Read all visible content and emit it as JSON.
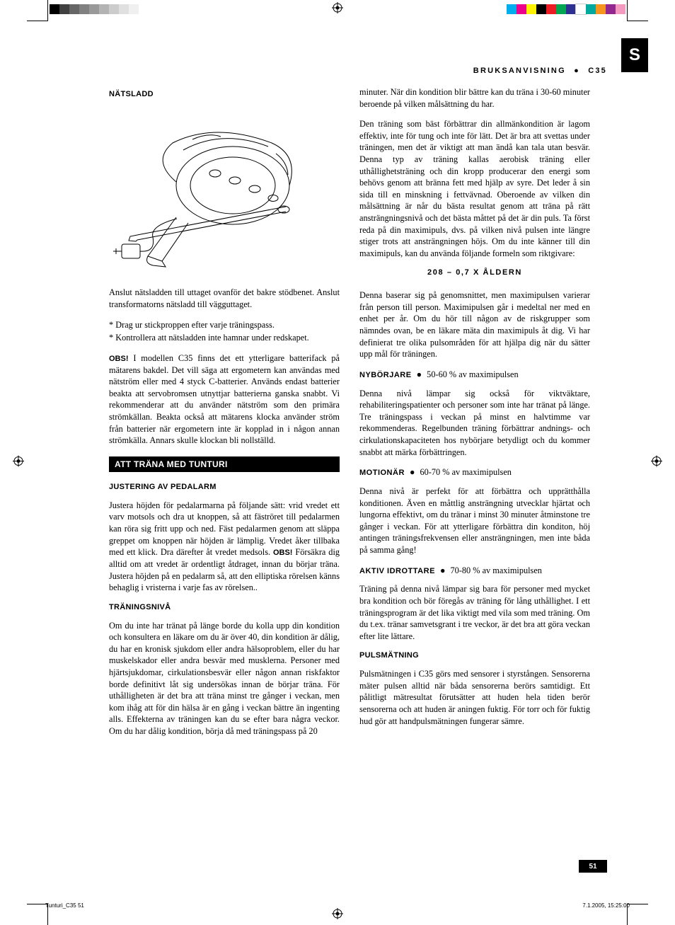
{
  "regmarks": {
    "gray_bar": [
      "#000000",
      "#404040",
      "#666666",
      "#808080",
      "#999999",
      "#b3b3b3",
      "#cccccc",
      "#e0e0e0",
      "#f0f0f0"
    ],
    "color_bar": [
      "#00aeef",
      "#ec008c",
      "#fff200",
      "#000000",
      "#ed1c24",
      "#00a651",
      "#2e3192",
      "#ffffff",
      "#00a99d",
      "#f7941d",
      "#92278f",
      "#f49ac1"
    ]
  },
  "tab": {
    "letter": "S"
  },
  "header": {
    "left": "BRUKSANVISNING",
    "right": "C35"
  },
  "page_number": "51",
  "footer": {
    "left": "Tunturi_C35   51",
    "right": "7.1.2005, 15:25:00"
  },
  "left_col": {
    "h_natsladd": "NÄTSLADD",
    "p_natsladd": "Anslut nätsladden till uttaget ovanför det bakre stödbenet. Anslut transformatorns nätsladd till vägguttaget.",
    "bul1": "* Drag ur stickproppen efter varje träningspass.",
    "bul2": "* Kontrollera att nätsladden inte hamnar under redskapet.",
    "obs_label": "OBS!",
    "p_obs": " I modellen C35 finns det ett ytterligare batterifack på mätarens bakdel. Det vill säga att ergometern kan användas med nätström eller med 4 styck C-batterier. Används endast batterier beakta att servobromsen utnyttjar batterierna ganska snabbt. Vi rekommenderar att du använder nätström som den primära strömkällan. Beakta också att mätarens klocka använder ström från batterier när ergometern inte är kopplad in i någon annan strömkälla. Annars skulle klockan bli nollställd.",
    "section_bar": "ATT TRÄNA MED TUNTURI",
    "h_just": "JUSTERING AV PEDALARM",
    "p_just_a": "Justera höjden för pedalarmarna på följande sätt: vrid vredet ett varv motsols och dra ut knoppen, så att fäströret till pedalarmen kan röra sig fritt upp och ned. Fäst pedalarmen genom att släppa greppet om knoppen när höjden är lämplig. Vredet åker tillbaka med ett klick. Dra därefter åt vredet medsols. ",
    "obs2_label": "OBS!",
    "p_just_b": " Försäkra dig alltid om att vredet är ordentligt åtdraget, innan du börjar träna. Justera höjden på en pedalarm så, att den elliptiska rörelsen känns behaglig i vristerna i varje fas av rörelsen..",
    "h_tniv": "TRÄNINGSNIVÅ",
    "p_tniv": "Om du inte har tränat på länge borde du kolla upp din kondition och konsultera en läkare om du är över 40, din kondition är dålig, du har en kronisk sjukdom eller andra hälsoproblem, eller du har muskelskador eller andra besvär med musklerna. Personer med hjärtsjukdomar, cirkulationsbesvär eller någon annan riskfaktor borde definitivt låt sig undersökas innan de börjar träna. För uthålligheten är det bra att träna minst tre gånger i veckan, men kom ihåg att för din hälsa är en gång i veckan bättre än ingenting alls. Effekterna av träningen kan du se efter bara några veckor. Om du har dålig kondition, börja då med träningspass på 20"
  },
  "right_col": {
    "p_cont": "minuter. När din kondition blir bättre kan du träna i 30-60 minuter beroende på vilken målsättning du har.",
    "p_main": "Den träning som bäst förbättrar din allmänkondition är lagom effektiv, inte för tung och inte för lätt. Det är bra att svettas under träningen, men det är viktigt att man ändå kan tala utan besvär. Denna typ av träning kallas aerobisk träning eller uthållighetsträning och din kropp producerar den energi som behövs genom att bränna fett med hjälp av syre. Det leder å sin sida till en minskning i fettvävnad. Oberoende av vilken din målsättning är når du bästa resultat genom att träna på rätt ansträngningsnivå och det bästa måttet på det är din puls. Ta först reda på din maximipuls, dvs. på vilken nivå pulsen inte längre stiger trots att ansträngningen höjs. Om du inte känner till din maximipuls, kan du använda följande formeln som riktgivare:",
    "formula": "208 – 0,7 X ÅLDERN",
    "p_formula_desc": "Denna baserar sig på genomsnittet, men maximipulsen varierar från person till person. Maximipulsen går i medeltal ner med en enhet per år. Om du hör till någon av de riskgrupper som nämndes ovan, be en läkare mäta din maximipuls åt dig. Vi har definierat tre olika pulsområden för att hjälpa dig när du sätter upp mål för träningen.",
    "lvl1_head": "NYBÖRJARE",
    "lvl1_range": "50-60 % av maximipulsen",
    "lvl1_p": "Denna nivå lämpar sig också för viktväktare, rehabiliteringspatienter och personer som inte har tränat på länge. Tre träningspass i veckan på minst en halvtimme var rekommenderas. Regelbunden träning förbättrar andnings- och cirkulationskapaciteten hos nybörjare betydligt och du kommer snabbt att märka förbättringen.",
    "lvl2_head": "MOTIONÄR",
    "lvl2_range": "60-70 % av maximipulsen",
    "lvl2_p": "Denna nivå är perfekt för att förbättra och upprätthålla konditionen. Även en måttlig ansträngning utvecklar hjärtat och lungorna effektivt, om du tränar i minst 30 minuter åtminstone tre gånger i veckan. För att ytterligare förbättra din konditon, höj antingen träningsfrekvensen eller ansträngningen, men inte båda på samma gång!",
    "lvl3_head": "AKTIV IDROTTARE",
    "lvl3_range": "70-80 % av maximipulsen",
    "lvl3_p": "Träning på denna nivå lämpar sig bara för personer med mycket bra kondition och bör föregås av träning för lång uthållighet. I ett träningsprogram är det lika viktigt med vila som med träning. Om du t.ex. tränar samvetsgrant i tre veckor, är det bra att göra veckan efter lite lättare.",
    "h_puls": "PULSMÄTNING",
    "p_puls": "Pulsmätningen i C35 görs med sensorer i styrstången. Sensorerna mäter pulsen alltid när båda sensorerna berörs samtidigt. Ett pålitligt mätresultat förutsätter att huden hela tiden berör sensorerna och att huden är aningen fuktig. För torr och för fuktig hud gör att handpulsmätningen fungerar sämre."
  }
}
